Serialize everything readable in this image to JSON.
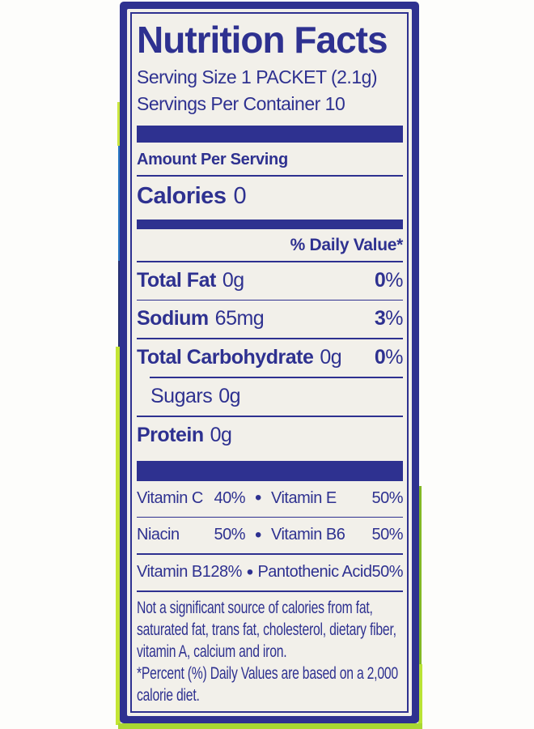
{
  "label": {
    "title": "Nutrition Facts",
    "serving_size": "Serving Size 1 PACKET (2.1g)",
    "servings_per_container": "Servings Per Container 10",
    "amount_per_serving": "Amount Per Serving",
    "calories_label": "Calories",
    "calories_value": "0",
    "daily_value_header": "% Daily Value*",
    "nutrients": [
      {
        "name": "Total Fat",
        "amount": "0g",
        "dv_num": "0",
        "dv_sign": "%"
      },
      {
        "name": "Sodium",
        "amount": "65mg",
        "dv_num": "3",
        "dv_sign": "%"
      },
      {
        "name": "Total Carbohydrate",
        "amount": "0g",
        "dv_num": "0",
        "dv_sign": "%"
      },
      {
        "name": "Sugars",
        "amount": "0g"
      },
      {
        "name": "Protein",
        "amount": "0g"
      }
    ],
    "vitamins_bullet": "•",
    "vitamins": [
      {
        "left_name": "Vitamin C",
        "left_value": "40%",
        "right_name": "Vitamin E",
        "right_value": "50%"
      },
      {
        "left_name": "Niacin",
        "left_value": "50%",
        "right_name": "Vitamin B6",
        "right_value": "50%"
      },
      {
        "left_name": "Vitamin B12",
        "left_value": "8%",
        "right_name": "Pantothenic Acid",
        "right_value": "50%"
      }
    ],
    "footnote": {
      "line1": "Not a significant source of calories from fat, saturated fat, trans fat, cholesterol, dietary fiber, vitamin A, calcium and iron.",
      "line2": "*Percent (%) Daily Values are based on a 2,000 calorie diet."
    }
  },
  "colors": {
    "navy": "#2e3190",
    "label_background": "#f2f0ea",
    "edge_chartreuse": "#c9e63d",
    "edge_blue": "#2a79c4",
    "edge_green_bottom": "#a9d832"
  }
}
